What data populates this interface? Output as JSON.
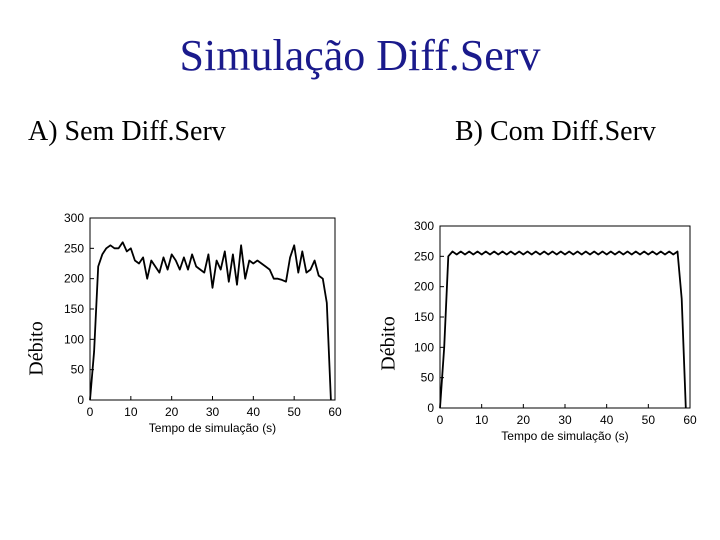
{
  "slide": {
    "title": "Simulação Diff.Serv",
    "label_a": "A) Sem Diff.Serv",
    "label_b": "B) Com Diff.Serv"
  },
  "chart_data": [
    {
      "type": "line",
      "xlabel": "Tempo de simulação (s)",
      "ylabel": "Débito",
      "xlim": [
        0,
        60
      ],
      "ylim": [
        0,
        300
      ],
      "xticks": [
        0,
        10,
        20,
        30,
        40,
        50,
        60
      ],
      "yticks": [
        0,
        50,
        100,
        150,
        200,
        250,
        300
      ],
      "grid": false,
      "series": [
        {
          "color": "#000000",
          "x": [
            0,
            1,
            2,
            3,
            4,
            5,
            6,
            7,
            8,
            9,
            10,
            11,
            12,
            13,
            14,
            15,
            16,
            17,
            18,
            19,
            20,
            21,
            22,
            23,
            24,
            25,
            26,
            27,
            28,
            29,
            30,
            31,
            32,
            33,
            34,
            35,
            36,
            37,
            38,
            39,
            40,
            41,
            42,
            43,
            44,
            45,
            46,
            47,
            48,
            49,
            50,
            51,
            52,
            53,
            54,
            55,
            56,
            57,
            58,
            59
          ],
          "values": [
            0,
            80,
            220,
            240,
            250,
            255,
            250,
            250,
            260,
            245,
            250,
            230,
            225,
            235,
            200,
            230,
            220,
            210,
            235,
            215,
            240,
            230,
            215,
            235,
            215,
            240,
            220,
            215,
            210,
            240,
            185,
            230,
            215,
            245,
            195,
            240,
            190,
            255,
            200,
            230,
            225,
            230,
            225,
            220,
            215,
            200,
            200,
            198,
            195,
            235,
            255,
            210,
            245,
            210,
            215,
            230,
            205,
            200,
            160,
            0
          ]
        }
      ]
    },
    {
      "type": "line",
      "xlabel": "Tempo de simulação (s)",
      "ylabel": "Débito",
      "xlim": [
        0,
        60
      ],
      "ylim": [
        0,
        300
      ],
      "xticks": [
        0,
        10,
        20,
        30,
        40,
        50,
        60
      ],
      "yticks": [
        0,
        50,
        100,
        150,
        200,
        250,
        300
      ],
      "grid": false,
      "series": [
        {
          "color": "#000000",
          "x": [
            0,
            1,
            2,
            3,
            4,
            5,
            6,
            7,
            8,
            9,
            10,
            11,
            12,
            13,
            14,
            15,
            16,
            17,
            18,
            19,
            20,
            21,
            22,
            23,
            24,
            25,
            26,
            27,
            28,
            29,
            30,
            31,
            32,
            33,
            34,
            35,
            36,
            37,
            38,
            39,
            40,
            41,
            42,
            43,
            44,
            45,
            46,
            47,
            48,
            49,
            50,
            51,
            52,
            53,
            54,
            55,
            56,
            57,
            58,
            59
          ],
          "values": [
            0,
            100,
            250,
            258,
            253,
            258,
            253,
            258,
            253,
            258,
            253,
            258,
            253,
            258,
            253,
            258,
            253,
            258,
            253,
            258,
            253,
            258,
            253,
            258,
            253,
            258,
            253,
            258,
            253,
            258,
            253,
            258,
            253,
            258,
            253,
            258,
            253,
            258,
            253,
            258,
            253,
            258,
            253,
            258,
            253,
            258,
            253,
            258,
            253,
            258,
            253,
            258,
            253,
            258,
            253,
            258,
            253,
            258,
            180,
            0
          ]
        }
      ]
    }
  ]
}
